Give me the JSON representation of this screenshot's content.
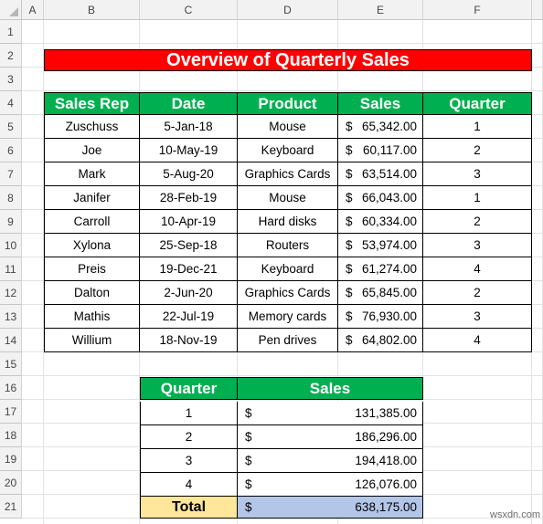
{
  "columns": [
    "A",
    "B",
    "C",
    "D",
    "E",
    "F"
  ],
  "rows": [
    "1",
    "2",
    "3",
    "4",
    "5",
    "6",
    "7",
    "8",
    "9",
    "10",
    "11",
    "12",
    "13",
    "14",
    "15",
    "16",
    "17",
    "18",
    "19",
    "20",
    "21"
  ],
  "title": "Overview of Quarterly Sales",
  "sales_table": {
    "headers": [
      "Sales Rep",
      "Date",
      "Product",
      "Sales",
      "Quarter"
    ],
    "currency": "$",
    "rows": [
      {
        "rep": "Zuschuss",
        "date": "5-Jan-18",
        "product": "Mouse",
        "sales": "65,342.00",
        "quarter": "1"
      },
      {
        "rep": "Joe",
        "date": "10-May-19",
        "product": "Keyboard",
        "sales": "60,117.00",
        "quarter": "2"
      },
      {
        "rep": "Mark",
        "date": "5-Aug-20",
        "product": "Graphics Cards",
        "sales": "63,514.00",
        "quarter": "3"
      },
      {
        "rep": "Janifer",
        "date": "28-Feb-19",
        "product": "Mouse",
        "sales": "66,043.00",
        "quarter": "1"
      },
      {
        "rep": "Carroll",
        "date": "10-Apr-19",
        "product": "Hard disks",
        "sales": "60,334.00",
        "quarter": "2"
      },
      {
        "rep": "Xylona",
        "date": "25-Sep-18",
        "product": "Routers",
        "sales": "53,974.00",
        "quarter": "3"
      },
      {
        "rep": "Preis",
        "date": "19-Dec-21",
        "product": "Keyboard",
        "sales": "61,274.00",
        "quarter": "4"
      },
      {
        "rep": "Dalton",
        "date": "2-Jun-20",
        "product": "Graphics Cards",
        "sales": "65,845.00",
        "quarter": "2"
      },
      {
        "rep": "Mathis",
        "date": "22-Jul-19",
        "product": "Memory cards",
        "sales": "76,930.00",
        "quarter": "3"
      },
      {
        "rep": "Willium",
        "date": "18-Nov-19",
        "product": "Pen drives",
        "sales": "64,802.00",
        "quarter": "4"
      }
    ]
  },
  "summary_table": {
    "headers": [
      "Quarter",
      "Sales"
    ],
    "rows": [
      {
        "quarter": "1",
        "sales": "131,385.00"
      },
      {
        "quarter": "2",
        "sales": "186,296.00"
      },
      {
        "quarter": "3",
        "sales": "194,418.00"
      },
      {
        "quarter": "4",
        "sales": "126,076.00"
      }
    ],
    "total_label": "Total",
    "total_value": "638,175.00"
  },
  "watermark": "wsxdn.com",
  "colors": {
    "title_bg": "#ff0000",
    "header_bg": "#00b050",
    "total_label_bg": "#ffe699",
    "total_value_bg": "#b4c6e7"
  }
}
